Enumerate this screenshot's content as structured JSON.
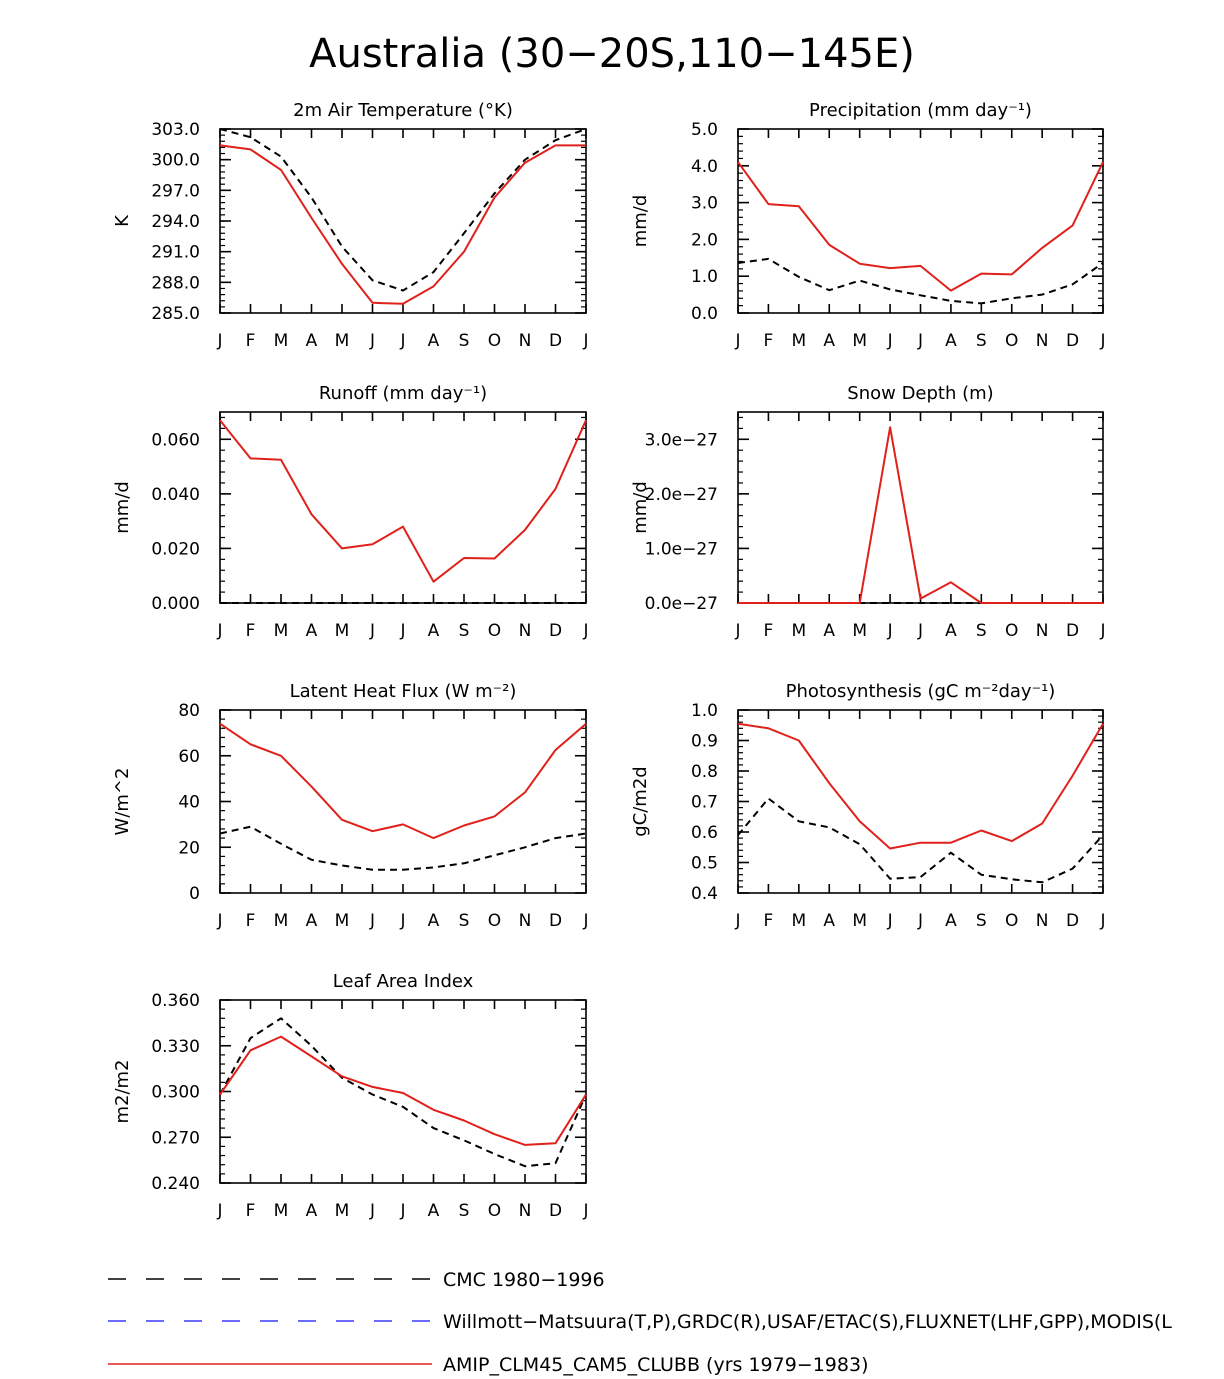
{
  "title": "Australia (30−20S,110−145E)",
  "months": [
    "J",
    "F",
    "M",
    "A",
    "M",
    "J",
    "J",
    "A",
    "S",
    "O",
    "N",
    "D",
    "J"
  ],
  "colors": {
    "cmc": "#000000",
    "obs": "#3a3aff",
    "model": "#e0201b",
    "axis": "#000000"
  },
  "legend": [
    {
      "key": "cmc",
      "label": "CMC 1980−1996",
      "style": "dashed"
    },
    {
      "key": "obs",
      "label": "Willmott−Matsuura(T,P),GRDC(R),USAF/ETAC(S),FLUXNET(LHF,GPP),MODIS(L",
      "style": "dashed"
    },
    {
      "key": "model",
      "label": "AMIP_CLM45_CAM5_CLUBB (yrs 1979−1983)",
      "style": "solid"
    }
  ],
  "chart_data": [
    {
      "type": "line",
      "title": "2m Air Temperature (°K)",
      "ylabel": "K",
      "ylim": [
        285,
        303
      ],
      "yticks": [
        285,
        288,
        291,
        294,
        297,
        300,
        303
      ],
      "ytick_labels": [
        "285.0",
        "288.0",
        "291.0",
        "294.0",
        "297.0",
        "300.0",
        "303.0"
      ],
      "series": [
        {
          "name": "CMC 1980−1996",
          "key": "cmc",
          "values": [
            303.0,
            302.2,
            300.3,
            296.3,
            291.5,
            288.2,
            287.2,
            289.0,
            292.8,
            296.7,
            300.0,
            301.9,
            303.0
          ]
        },
        {
          "name": "AMIP_CLM45_CAM5_CLUBB",
          "key": "model",
          "values": [
            301.4,
            301.0,
            299.0,
            294.3,
            289.8,
            286.0,
            285.9,
            287.6,
            291.0,
            296.3,
            299.7,
            301.4,
            301.4
          ]
        }
      ]
    },
    {
      "type": "line",
      "title": "Precipitation (mm day⁻¹)",
      "ylabel": "mm/d",
      "ylim": [
        0,
        5
      ],
      "yticks": [
        0,
        1,
        2,
        3,
        4,
        5
      ],
      "ytick_labels": [
        "0.0",
        "1.0",
        "2.0",
        "3.0",
        "4.0",
        "5.0"
      ],
      "series": [
        {
          "name": "CMC 1980−1996",
          "key": "cmc",
          "values": [
            1.36,
            1.47,
            0.98,
            0.62,
            0.88,
            0.64,
            0.48,
            0.33,
            0.26,
            0.4,
            0.5,
            0.78,
            1.36
          ]
        },
        {
          "name": "AMIP_CLM45_CAM5_CLUBB",
          "key": "model",
          "values": [
            4.1,
            2.96,
            2.9,
            1.85,
            1.34,
            1.22,
            1.28,
            0.61,
            1.07,
            1.05,
            1.77,
            2.38,
            4.1
          ]
        }
      ]
    },
    {
      "type": "line",
      "title": "Runoff (mm day⁻¹)",
      "ylabel": "mm/d",
      "ylim": [
        0,
        0.07
      ],
      "yticks": [
        0,
        0.02,
        0.04,
        0.06
      ],
      "ytick_labels": [
        "0.000",
        "0.020",
        "0.040",
        "0.060"
      ],
      "series": [
        {
          "name": "CMC 1980−1996",
          "key": "cmc",
          "values": [
            0,
            0,
            0,
            0,
            0,
            0,
            0,
            0,
            0,
            0,
            0,
            0,
            0
          ]
        },
        {
          "name": "AMIP_CLM45_CAM5_CLUBB",
          "key": "model",
          "values": [
            0.067,
            0.053,
            0.0525,
            0.0325,
            0.02,
            0.0215,
            0.028,
            0.0078,
            0.0165,
            0.0163,
            0.0268,
            0.0418,
            0.067
          ]
        }
      ]
    },
    {
      "type": "line",
      "title": "Snow Depth (m)",
      "ylabel": "mm/d",
      "ylim": [
        0,
        3.5e-27
      ],
      "yticks": [
        0,
        1e-27,
        2e-27,
        3e-27
      ],
      "ytick_labels": [
        "0.0e−27",
        "1.0e−27",
        "2.0e−27",
        "3.0e−27"
      ],
      "series": [
        {
          "name": "CMC 1980−1996",
          "key": "cmc",
          "values": [
            0,
            0,
            0,
            0,
            0,
            0,
            0,
            0,
            0,
            0,
            0,
            0,
            0
          ]
        },
        {
          "name": "AMIP_CLM45_CAM5_CLUBB",
          "key": "model",
          "values": [
            0,
            0,
            0,
            0,
            0,
            3.22e-27,
            8e-29,
            3.8e-28,
            0,
            0,
            0,
            0,
            0
          ]
        }
      ]
    },
    {
      "type": "line",
      "title": "Latent Heat Flux (W m⁻²)",
      "ylabel": "W/m^2",
      "ylim": [
        0,
        80
      ],
      "yticks": [
        0,
        20,
        40,
        60,
        80
      ],
      "ytick_labels": [
        "0",
        "20",
        "40",
        "60",
        "80"
      ],
      "series": [
        {
          "name": "CMC 1980−1996",
          "key": "cmc",
          "values": [
            26,
            29,
            21.5,
            14.5,
            12,
            10.2,
            10.2,
            11.2,
            13,
            16.5,
            20,
            24,
            26
          ]
        },
        {
          "name": "AMIP_CLM45_CAM5_CLUBB",
          "key": "model",
          "values": [
            74,
            65,
            60,
            46.5,
            32,
            27,
            30,
            24,
            29.5,
            33.5,
            44,
            62.5,
            74
          ]
        }
      ]
    },
    {
      "type": "line",
      "title": "Photosynthesis (gC m⁻²day⁻¹)",
      "ylabel": "gC/m2d",
      "ylim": [
        0.4,
        1.0
      ],
      "yticks": [
        0.4,
        0.5,
        0.6,
        0.7,
        0.8,
        0.9,
        1.0
      ],
      "ytick_labels": [
        "0.4",
        "0.5",
        "0.6",
        "0.7",
        "0.8",
        "0.9",
        "1.0"
      ],
      "series": [
        {
          "name": "CMC 1980−1996",
          "key": "cmc",
          "values": [
            0.59,
            0.71,
            0.635,
            0.615,
            0.56,
            0.447,
            0.452,
            0.532,
            0.46,
            0.445,
            0.435,
            0.48,
            0.59
          ]
        },
        {
          "name": "AMIP_CLM45_CAM5_CLUBB",
          "key": "model",
          "values": [
            0.955,
            0.94,
            0.9,
            0.76,
            0.635,
            0.546,
            0.565,
            0.565,
            0.605,
            0.57,
            0.628,
            0.785,
            0.955
          ]
        }
      ]
    },
    {
      "type": "line",
      "title": "Leaf Area Index",
      "ylabel": "m2/m2",
      "ylim": [
        0.24,
        0.36
      ],
      "yticks": [
        0.24,
        0.27,
        0.3,
        0.33,
        0.36
      ],
      "ytick_labels": [
        "0.240",
        "0.270",
        "0.300",
        "0.330",
        "0.360"
      ],
      "series": [
        {
          "name": "CMC 1980−1996",
          "key": "cmc",
          "values": [
            0.298,
            0.335,
            0.348,
            0.33,
            0.309,
            0.298,
            0.29,
            0.276,
            0.268,
            0.259,
            0.251,
            0.253,
            0.298
          ]
        },
        {
          "name": "AMIP_CLM45_CAM5_CLUBB",
          "key": "model",
          "values": [
            0.298,
            0.327,
            0.336,
            0.323,
            0.31,
            0.303,
            0.299,
            0.288,
            0.281,
            0.272,
            0.265,
            0.266,
            0.298
          ]
        }
      ]
    }
  ]
}
